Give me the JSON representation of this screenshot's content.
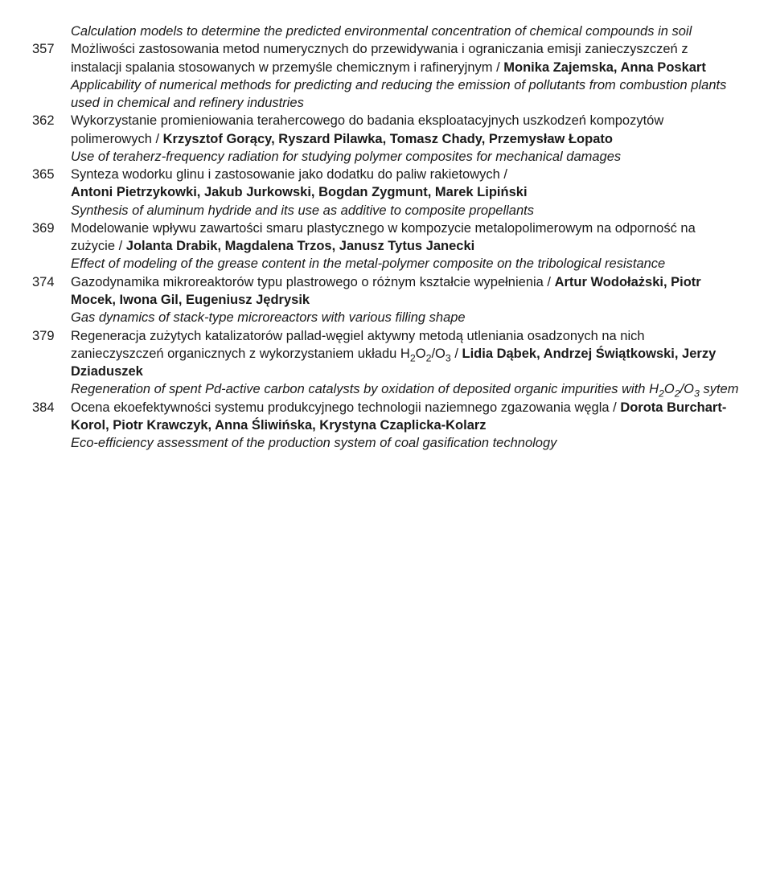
{
  "entries": [
    {
      "page": "",
      "lines": [
        {
          "text": "Calculation models to determine the predicted environmental concentration of chemical compounds in soil",
          "style": "italic"
        }
      ]
    },
    {
      "page": "357",
      "lines": [
        {
          "text": "Możliwości zastosowania metod numerycznych do przewidywania i ograniczania emisji zanieczyszczeń z instalacji spalania stosowanych w przemyśle chemicznym i rafineryjnym / ",
          "style": "normal"
        },
        {
          "text": "Monika Zajemska, Anna Poskart",
          "style": "bold"
        },
        {
          "text": "Applicability of numerical methods for predicting and reducing the emission of pollutants from combustion plants used in chemical and refinery industries",
          "style": "italic",
          "block": true
        }
      ]
    },
    {
      "page": "362",
      "lines": [
        {
          "text": "Wykorzystanie promieniowania terahercowego do badania eksploatacyjnych uszkodzeń kompozytów polimerowych / ",
          "style": "normal"
        },
        {
          "text": "Krzysztof Gorący, Ryszard Pilawka, Tomasz Chady, Przemysław Łopato",
          "style": "bold"
        },
        {
          "text": "Use of teraherz-frequency radiation for studying polymer composites for mechanical damages",
          "style": "italic",
          "block": true
        }
      ]
    },
    {
      "page": "365",
      "lines": [
        {
          "text": "Synteza wodorku glinu i zastosowanie jako dodatku do paliw rakietowych / ",
          "style": "normal"
        },
        {
          "text": "Antoni Pietrzykowki, Jakub Jurkowski, Bogdan Zygmunt, Marek Lipiński",
          "style": "bold",
          "block": true
        },
        {
          "text": "Synthesis of aluminum hydride and its use as additive to composite propellants",
          "style": "italic",
          "block": true
        }
      ]
    },
    {
      "page": "369",
      "lines": [
        {
          "text": "Modelowanie wpływu zawartości smaru plastycznego w kompozycie metalopolimerowym na odporność na zużycie / ",
          "style": "normal"
        },
        {
          "text": "Jolanta Drabik, Magdalena Trzos, Janusz Tytus Janecki",
          "style": "bold"
        },
        {
          "text": "Effect of modeling of the grease content in the metal-polymer composite on the tribological resistance",
          "style": "italic",
          "block": true
        }
      ]
    },
    {
      "page": "374",
      "lines": [
        {
          "text": "Gazodynamika mikroreaktorów typu plastrowego o różnym kształcie wypełnienia / ",
          "style": "normal"
        },
        {
          "text": "Artur Wodołażski, Piotr Mocek, Iwona Gil, Eugeniusz Jędrysik",
          "style": "bold"
        },
        {
          "text": "Gas dynamics of stack-type microreactors with various filling shape",
          "style": "italic",
          "block": true
        }
      ]
    },
    {
      "page": "379",
      "lines": [
        {
          "text": "Regeneracja zużytych katalizatorów pallad-węgiel aktywny metodą utleniania osadzonych na nich zanieczyszczeń organicznych z wykorzystaniem układu H{sub2}O{sub2}/O{sub3} / ",
          "style": "normal"
        },
        {
          "text": "Lidia Dąbek, Andrzej Świątkowski, Jerzy Dziaduszek",
          "style": "bold"
        },
        {
          "text": "Regeneration of spent Pd-active carbon catalysts by oxidation of deposited organic impurities with H{sub2}O{sub2}/O{sub3} sytem",
          "style": "italic",
          "block": true
        }
      ]
    },
    {
      "page": "384",
      "lines": [
        {
          "text": "Ocena ekoefektywności systemu produkcyjnego technologii naziemnego zgazowania węgla / ",
          "style": "normal"
        },
        {
          "text": "Dorota Burchart-Korol, Piotr Krawczyk, Anna Śliwińska, Krystyna Czaplicka-Kolarz",
          "style": "bold"
        },
        {
          "text": "Eco-efficiency assessment of the production system of coal gasification technology",
          "style": "italic",
          "block": true
        }
      ]
    }
  ]
}
